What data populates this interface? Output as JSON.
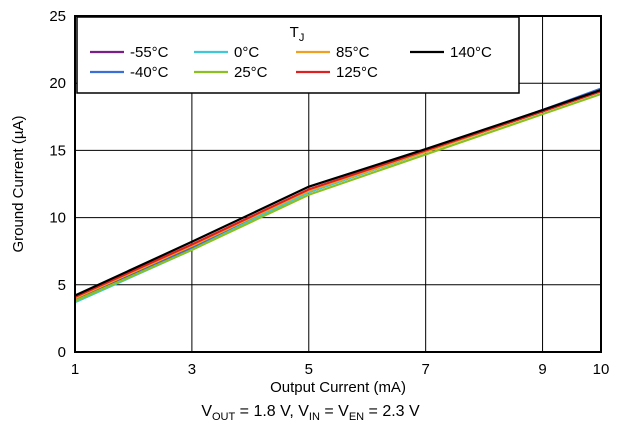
{
  "chart_data": {
    "type": "line",
    "xlabel": "Output Current (mA)",
    "ylabel": "Ground Current (µA)",
    "x_ticks": [
      1,
      3,
      5,
      7,
      9,
      10
    ],
    "y_ticks": [
      0,
      5,
      10,
      15,
      20,
      25
    ],
    "xlim": [
      1,
      10
    ],
    "ylim": [
      0,
      25
    ],
    "grid": true,
    "legend_title": "T",
    "legend_title_sub": "J",
    "legend_placement": "top",
    "x": [
      1,
      3,
      5,
      7,
      9,
      10
    ],
    "series": [
      {
        "name": "-55°C",
        "color": "#7a1f8a",
        "values": [
          3.9,
          7.8,
          11.9,
          15.0,
          18.0,
          19.5
        ]
      },
      {
        "name": "-40°C",
        "color": "#3a6fd8",
        "values": [
          3.8,
          7.7,
          11.9,
          14.9,
          18.0,
          19.6
        ]
      },
      {
        "name": "0°C",
        "color": "#3fc8d8",
        "values": [
          3.7,
          7.6,
          11.9,
          14.9,
          17.9,
          19.4
        ]
      },
      {
        "name": "25°C",
        "color": "#8cc020",
        "values": [
          3.8,
          7.6,
          11.7,
          14.7,
          17.7,
          19.2
        ]
      },
      {
        "name": "85°C",
        "color": "#f0a020",
        "values": [
          4.0,
          7.9,
          12.0,
          14.9,
          17.9,
          19.4
        ]
      },
      {
        "name": "125°C",
        "color": "#e02020",
        "values": [
          4.1,
          8.0,
          12.1,
          15.0,
          17.9,
          19.4
        ]
      },
      {
        "name": "140°C",
        "color": "#000000",
        "values": [
          4.2,
          8.2,
          12.3,
          15.1,
          18.0,
          19.5
        ]
      }
    ]
  },
  "caption": {
    "v_out": "V",
    "v_out_sub": "OUT",
    "v_out_val": " = 1.8 V, V",
    "v_in_sub": "IN",
    "v_in_val": " = V",
    "v_en_sub": "EN",
    "v_en_val": " = 2.3 V"
  }
}
